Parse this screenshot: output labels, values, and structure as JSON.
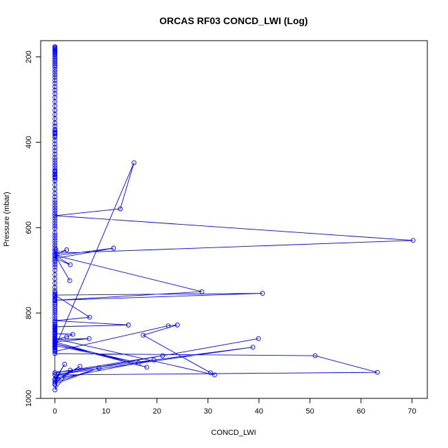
{
  "chart_data": {
    "type": "line",
    "title": "ORCAS RF03 CONCD_LWI (Log)",
    "xlabel": "CONCD_LWI",
    "ylabel": "Pressure (mbar)",
    "xlim": [
      -2.8,
      73
    ],
    "ylim": [
      1000,
      162
    ],
    "y_inverted": true,
    "xticks": [
      0,
      10,
      20,
      30,
      40,
      50,
      60,
      70
    ],
    "yticks": [
      200,
      400,
      600,
      800,
      1000
    ],
    "grid": false,
    "legend": "none",
    "series": [
      {
        "color": "#0000ff",
        "marker": "open-circle",
        "x": [
          0,
          0,
          0,
          0,
          0,
          0,
          0,
          0,
          0,
          0,
          0,
          0,
          0,
          0,
          0,
          0,
          0,
          0,
          0,
          0,
          0,
          0,
          0,
          0,
          0,
          0,
          0,
          0,
          0,
          0,
          0,
          0,
          0,
          0,
          0,
          0,
          0,
          0,
          0,
          0,
          0,
          0,
          0,
          0,
          0,
          0,
          0,
          0,
          0,
          0,
          0,
          0,
          0,
          0,
          0,
          0,
          0,
          0,
          0,
          0,
          0,
          0,
          0,
          0,
          0,
          0,
          0,
          0,
          0,
          0,
          0,
          0,
          0,
          0,
          0,
          0,
          0,
          0,
          0,
          0,
          0,
          0,
          0,
          0,
          0,
          0,
          0,
          0,
          0,
          0,
          0,
          0,
          0,
          0,
          0,
          0,
          0,
          0,
          0,
          0,
          0,
          0,
          0,
          0,
          0,
          0,
          0,
          0,
          0,
          0,
          0,
          0,
          0,
          0,
          0,
          0,
          0,
          0,
          0,
          0,
          0,
          0,
          0,
          0,
          0,
          0,
          0,
          0,
          0,
          0,
          15.5,
          12.8,
          0,
          70.2,
          0,
          2.3,
          0,
          11.5,
          0,
          0.2,
          0,
          3.0,
          0,
          2.9,
          0,
          28.8,
          0,
          40.7,
          0,
          6.8,
          0,
          14.4,
          0,
          0,
          0,
          0,
          0,
          0,
          0,
          0,
          0,
          0,
          0,
          0,
          0,
          22.2,
          24.0,
          17.3,
          30.5,
          31.3,
          0,
          0,
          3.5,
          2.3,
          0,
          6.7,
          0,
          18.0,
          0,
          16.4,
          0,
          0,
          0,
          0,
          51.0,
          63.2,
          0,
          39.9,
          0,
          38.8,
          0,
          21.1,
          0,
          19.4,
          0,
          1.9,
          0,
          4.9,
          0,
          8.6,
          0,
          3.0,
          0,
          0.7,
          0,
          0.3,
          0,
          0
        ],
        "y": [
          176,
          178,
          180,
          182,
          184,
          186,
          188,
          190,
          193,
          196,
          200,
          204,
          208,
          212,
          216,
          220,
          224,
          230,
          236,
          242,
          248,
          255,
          262,
          270,
          278,
          286,
          295,
          305,
          315,
          325,
          335,
          345,
          355,
          362,
          370,
          378,
          385,
          380,
          376,
          372,
          380,
          388,
          396,
          404,
          412,
          420,
          428,
          436,
          442,
          448,
          454,
          460,
          468,
          476,
          484,
          490,
          480,
          470,
          466,
          474,
          482,
          490,
          500,
          510,
          520,
          528,
          536,
          542,
          548,
          554,
          560,
          566,
          572,
          578,
          584,
          590,
          596,
          602,
          612,
          618,
          624,
          630,
          636,
          642,
          648,
          654,
          660,
          666,
          672,
          676,
          680,
          686,
          692,
          700,
          710,
          720,
          730,
          740,
          748,
          752,
          756,
          760,
          764,
          768,
          772,
          776,
          780,
          785,
          790,
          795,
          800,
          806,
          812,
          818,
          822,
          826,
          830,
          834,
          838,
          842,
          846,
          850,
          854,
          858,
          862,
          866,
          870,
          874,
          878,
          882,
          448,
          556,
          572,
          630,
          660,
          652,
          666,
          648,
          672,
          652,
          672,
          687,
          665,
          724,
          665,
          750,
          770,
          754,
          758,
          810,
          818,
          828,
          832,
          836,
          840,
          845,
          850,
          855,
          860,
          865,
          870,
          875,
          880,
          885,
          890,
          830,
          828,
          852,
          940,
          945,
          860,
          848,
          850,
          856,
          862,
          860,
          868,
          927,
          872,
          917,
          876,
          882,
          888,
          895,
          900,
          939,
          945,
          860,
          945,
          880,
          940,
          900,
          940,
          910,
          955,
          920,
          957,
          925,
          962,
          929,
          966,
          934,
          980,
          942,
          968,
          950,
          955,
          880
        ]
      }
    ]
  }
}
